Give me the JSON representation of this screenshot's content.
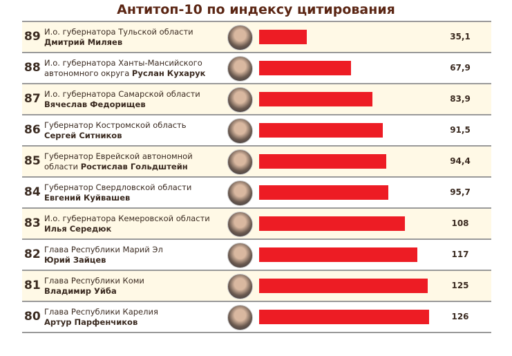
{
  "chart_data": {
    "type": "bar",
    "title": "Антитоп-10 по индексу цитирования",
    "rows": [
      {
        "rank": "89",
        "line1": "И.о. губернатора Тульской области",
        "line2": "",
        "name": "Дмитрий Миляев",
        "value": 35.1,
        "label": "35,1"
      },
      {
        "rank": "88",
        "line1": "И.о. губернатора Ханты-Мансийского",
        "line2": "автономного округа ",
        "name": "Руслан Кухарук",
        "value": 67.9,
        "label": "67,9"
      },
      {
        "rank": "87",
        "line1": "И.о. губернатора Самарской области",
        "line2": "",
        "name": "Вячеслав Федорищев",
        "value": 83.9,
        "label": "83,9"
      },
      {
        "rank": "86",
        "line1": "Губернатор Костромской область",
        "line2": "",
        "name": "Сергей Ситников",
        "value": 91.5,
        "label": "91,5"
      },
      {
        "rank": "85",
        "line1": "Губернатор Еврейской автономной",
        "line2": "области ",
        "name": "Ростислав Гольдштейн",
        "value": 94.4,
        "label": "94,4"
      },
      {
        "rank": "84",
        "line1": "Губернатор Свердловской области",
        "line2": "",
        "name": "Евгений Куйвашев",
        "value": 95.7,
        "label": "95,7"
      },
      {
        "rank": "83",
        "line1": "И.о. губернатора Кемеровской области",
        "line2": "",
        "name": "Илья Середюк",
        "value": 108,
        "label": "108"
      },
      {
        "rank": "82",
        "line1": "Глава Республики Марий Эл",
        "line2": "",
        "name": "Юрий Зайцев",
        "value": 117,
        "label": "117"
      },
      {
        "rank": "81",
        "line1": "Глава Республики Коми",
        "line2": "",
        "name": "Владимир Уйба",
        "value": 125,
        "label": "125"
      },
      {
        "rank": "80",
        "line1": "Глава Республики Карелия",
        "line2": "",
        "name": "Артур Парфенчиков",
        "value": 126,
        "label": "126"
      }
    ],
    "xlim": [
      0,
      130
    ],
    "bar_color": "#ed1c24",
    "alt_row_color": "#fff9e6"
  }
}
